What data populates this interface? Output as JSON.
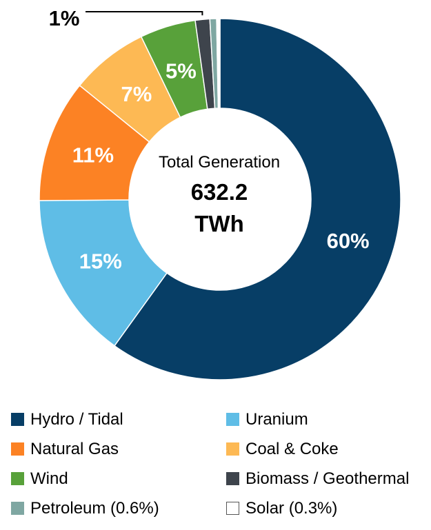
{
  "chart_data": {
    "type": "pie",
    "donut": true,
    "center_caption": "Total Generation",
    "center_value_line1": "632.2",
    "center_value_line2": "TWh",
    "slices": [
      {
        "name": "Hydro / Tidal",
        "value": 60.1,
        "label": "60%",
        "color": "#073e66",
        "label_color": "#ffffff"
      },
      {
        "name": "Uranium",
        "value": 15.0,
        "label": "15%",
        "color": "#5fbde6",
        "label_color": "#ffffff"
      },
      {
        "name": "Natural Gas",
        "value": 11.0,
        "label": "11%",
        "color": "#fc8224",
        "label_color": "#ffffff"
      },
      {
        "name": "Coal & Coke",
        "value": 7.0,
        "label": "7%",
        "color": "#fdb954",
        "label_color": "#ffffff"
      },
      {
        "name": "Wind",
        "value": 5.0,
        "label": "5%",
        "color": "#58a13a",
        "label_color": "#ffffff"
      },
      {
        "name": "Biomass / Geothermal",
        "value": 1.3,
        "label": "1%",
        "color": "#3e444c",
        "label_color": "#000000"
      },
      {
        "name": "Petroleum (0.6%)",
        "value": 0.6,
        "label": "",
        "color": "#7fa7a2",
        "label_color": "#000000"
      },
      {
        "name": "Solar (0.3%)",
        "value": 0.3,
        "label": "",
        "color": "#ffffff",
        "label_color": "#000000"
      }
    ],
    "legend_placement": "bottom"
  }
}
